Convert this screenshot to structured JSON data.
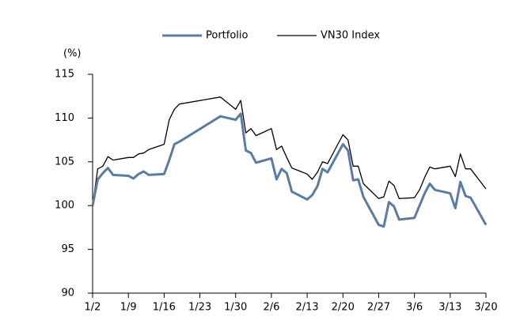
{
  "chart_data": {
    "type": "line",
    "y_axis_label": "(%)",
    "x": [
      "1/2",
      "1/3",
      "1/4",
      "1/5",
      "1/6",
      "1/9",
      "1/10",
      "1/11",
      "1/12",
      "1/13",
      "1/16",
      "1/17",
      "1/18",
      "1/19",
      "1/27",
      "1/30",
      "1/31",
      "2/1",
      "2/2",
      "2/3",
      "2/6",
      "2/7",
      "2/8",
      "2/9",
      "2/10",
      "2/13",
      "2/14",
      "2/15",
      "2/16",
      "2/17",
      "2/20",
      "2/21",
      "2/22",
      "2/23",
      "2/24",
      "2/27",
      "2/28",
      "3/1",
      "3/2",
      "3/3",
      "3/6",
      "3/7",
      "3/8",
      "3/9",
      "3/10",
      "3/13",
      "3/14",
      "3/15",
      "3/16",
      "3/17",
      "3/20"
    ],
    "series": [
      {
        "name": "Portfolio",
        "color": "#5b7ba0",
        "width": 3,
        "values": [
          100,
          103,
          103.7,
          104.3,
          103.5,
          103.4,
          103.1,
          103.6,
          103.9,
          103.5,
          103.6,
          105.2,
          107,
          107.3,
          110.2,
          109.8,
          110.5,
          106.3,
          106,
          104.9,
          105.4,
          103,
          104.2,
          103.7,
          101.6,
          100.7,
          101.2,
          102.2,
          104.2,
          103.8,
          107,
          106.3,
          102.9,
          103,
          101,
          97.8,
          97.6,
          100.4,
          99.9,
          98.4,
          98.6,
          100,
          101.4,
          102.5,
          101.8,
          101.4,
          99.7,
          102.7,
          101.1,
          100.9,
          97.8
        ]
      },
      {
        "name": "VN30 Index",
        "color": "#000000",
        "width": 1.3,
        "values": [
          100,
          104.2,
          104.5,
          105.6,
          105.2,
          105.5,
          105.5,
          105.9,
          106,
          106.4,
          107,
          109.8,
          111,
          111.6,
          112.4,
          111,
          112,
          108.3,
          108.8,
          108,
          108.8,
          106.4,
          106.8,
          105.5,
          104.3,
          103.6,
          103,
          103.8,
          105,
          104.8,
          108.1,
          107.5,
          104.5,
          104.5,
          102.5,
          100.8,
          101,
          102.8,
          102.3,
          100.8,
          100.9,
          101.8,
          103.2,
          104.4,
          104.2,
          104.5,
          103.3,
          105.9,
          104.2,
          104.2,
          101.9
        ]
      }
    ],
    "xlim": [
      "1/2",
      "3/20"
    ],
    "xticks": [
      "1/2",
      "1/9",
      "1/16",
      "1/23",
      "1/30",
      "2/6",
      "2/13",
      "2/20",
      "2/27",
      "3/6",
      "3/13",
      "3/20"
    ],
    "ylim": [
      90,
      115
    ],
    "yticks": [
      90,
      95,
      100,
      105,
      110,
      115
    ],
    "legend": "top"
  }
}
